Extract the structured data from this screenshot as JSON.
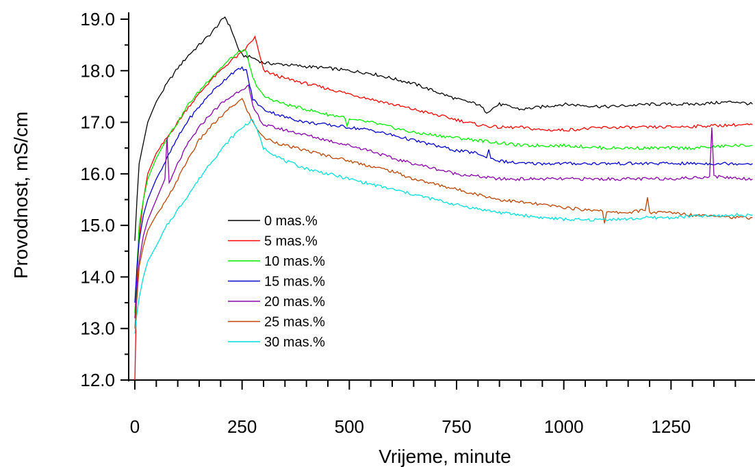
{
  "chart_data": {
    "type": "line",
    "xlabel": "Vrijeme, minute",
    "ylabel": "Provodnost, mS/cm",
    "xlim": [
      0,
      1440
    ],
    "ylim": [
      12.0,
      19.1
    ],
    "x_ticks": [
      0,
      250,
      500,
      750,
      1000,
      1250
    ],
    "x_tick_labels": [
      "0",
      "250",
      "500",
      "750",
      "1000",
      "1250"
    ],
    "y_ticks": [
      12.0,
      13.0,
      14.0,
      15.0,
      16.0,
      17.0,
      18.0,
      19.0
    ],
    "y_tick_labels": [
      "12.0",
      "13.0",
      "14.0",
      "15.0",
      "16.0",
      "17.0",
      "18.0",
      "19.0"
    ],
    "grid": false,
    "legend_position": "center-left",
    "series": [
      {
        "name": "0 mas.%",
        "color": "#000000",
        "x": [
          0,
          5,
          10,
          20,
          30,
          50,
          75,
          100,
          125,
          150,
          175,
          200,
          210,
          225,
          240,
          250,
          275,
          300,
          350,
          400,
          450,
          500,
          550,
          600,
          650,
          700,
          750,
          800,
          820,
          850,
          900,
          950,
          1000,
          1100,
          1200,
          1300,
          1400,
          1440
        ],
        "values": [
          14.7,
          15.5,
          16.2,
          16.6,
          17.0,
          17.4,
          17.75,
          18.05,
          18.3,
          18.5,
          18.7,
          18.95,
          19.05,
          18.8,
          18.45,
          18.3,
          18.25,
          18.15,
          18.12,
          18.08,
          18.05,
          18.0,
          17.95,
          17.85,
          17.75,
          17.6,
          17.45,
          17.35,
          17.2,
          17.35,
          17.25,
          17.3,
          17.35,
          17.3,
          17.35,
          17.35,
          17.4,
          17.35
        ]
      },
      {
        "name": "5 mas.%",
        "color": "#ff0000",
        "x": [
          0,
          5,
          10,
          20,
          30,
          50,
          75,
          100,
          125,
          150,
          175,
          200,
          225,
          250,
          275,
          280,
          300,
          350,
          400,
          450,
          500,
          550,
          600,
          650,
          700,
          750,
          800,
          850,
          900,
          950,
          1000,
          1100,
          1200,
          1300,
          1400,
          1440
        ],
        "values": [
          12.0,
          14.0,
          14.8,
          15.5,
          16.0,
          16.4,
          16.7,
          17.0,
          17.3,
          17.55,
          17.8,
          18.0,
          18.2,
          18.35,
          18.6,
          18.65,
          18.0,
          17.85,
          17.75,
          17.65,
          17.55,
          17.45,
          17.35,
          17.25,
          17.15,
          17.05,
          16.95,
          16.9,
          16.9,
          16.85,
          16.85,
          16.9,
          16.9,
          16.92,
          16.95,
          16.95
        ]
      },
      {
        "name": "10 mas.%",
        "color": "#00ee00",
        "x": [
          0,
          5,
          10,
          20,
          30,
          50,
          75,
          100,
          125,
          150,
          175,
          200,
          225,
          250,
          260,
          275,
          300,
          350,
          400,
          450,
          490,
          495,
          500,
          550,
          600,
          650,
          700,
          750,
          800,
          850,
          900,
          950,
          1000,
          1100,
          1200,
          1300,
          1400,
          1440
        ],
        "values": [
          13.3,
          14.2,
          15.0,
          15.5,
          15.9,
          16.3,
          16.7,
          17.0,
          17.35,
          17.6,
          17.85,
          18.05,
          18.25,
          18.4,
          18.35,
          17.85,
          17.5,
          17.35,
          17.25,
          17.15,
          17.1,
          16.9,
          17.05,
          17.0,
          16.9,
          16.8,
          16.75,
          16.7,
          16.65,
          16.6,
          16.55,
          16.55,
          16.55,
          16.5,
          16.5,
          16.5,
          16.55,
          16.55
        ]
      },
      {
        "name": "15 mas.%",
        "color": "#0000cc",
        "x": [
          0,
          5,
          10,
          20,
          30,
          50,
          75,
          100,
          125,
          150,
          175,
          200,
          225,
          250,
          260,
          275,
          300,
          350,
          400,
          450,
          500,
          550,
          600,
          650,
          700,
          750,
          800,
          820,
          825,
          830,
          850,
          900,
          950,
          1000,
          1100,
          1200,
          1300,
          1400,
          1440
        ],
        "values": [
          13.5,
          14.2,
          14.7,
          15.2,
          15.5,
          15.9,
          16.3,
          16.7,
          17.05,
          17.3,
          17.55,
          17.75,
          17.95,
          18.05,
          18.0,
          17.45,
          17.25,
          17.1,
          17.0,
          16.95,
          16.9,
          16.85,
          16.75,
          16.65,
          16.55,
          16.45,
          16.4,
          16.3,
          16.5,
          16.3,
          16.25,
          16.2,
          16.2,
          16.2,
          16.2,
          16.2,
          16.2,
          16.2,
          16.2
        ]
      },
      {
        "name": "20 mas.%",
        "color": "#8800aa",
        "x": [
          0,
          5,
          10,
          20,
          30,
          50,
          70,
          75,
          80,
          100,
          125,
          150,
          175,
          200,
          225,
          250,
          265,
          275,
          300,
          350,
          400,
          450,
          500,
          550,
          600,
          650,
          700,
          750,
          800,
          850,
          900,
          950,
          1000,
          1100,
          1200,
          1300,
          1340,
          1345,
          1350,
          1400,
          1440
        ],
        "values": [
          13.2,
          13.8,
          14.3,
          14.8,
          15.1,
          15.5,
          15.9,
          16.7,
          15.8,
          16.2,
          16.6,
          16.9,
          17.15,
          17.35,
          17.5,
          17.65,
          17.7,
          17.3,
          16.95,
          16.85,
          16.75,
          16.65,
          16.55,
          16.45,
          16.3,
          16.2,
          16.1,
          16.0,
          15.95,
          15.9,
          15.9,
          15.9,
          15.9,
          15.9,
          15.9,
          15.92,
          15.95,
          16.9,
          15.95,
          15.92,
          15.9
        ]
      },
      {
        "name": "25 mas.%",
        "color": "#bb4400",
        "x": [
          0,
          5,
          10,
          20,
          30,
          50,
          75,
          100,
          125,
          150,
          175,
          200,
          225,
          250,
          275,
          300,
          350,
          400,
          450,
          500,
          550,
          600,
          650,
          700,
          750,
          800,
          850,
          900,
          950,
          1000,
          1050,
          1090,
          1095,
          1100,
          1150,
          1190,
          1195,
          1200,
          1250,
          1300,
          1350,
          1400,
          1440
        ],
        "values": [
          13.0,
          13.6,
          14.2,
          14.6,
          14.9,
          15.2,
          15.5,
          15.9,
          16.3,
          16.65,
          16.9,
          17.1,
          17.3,
          17.45,
          17.0,
          16.7,
          16.55,
          16.45,
          16.35,
          16.25,
          16.15,
          16.05,
          15.9,
          15.8,
          15.7,
          15.6,
          15.5,
          15.45,
          15.4,
          15.35,
          15.3,
          15.3,
          15.05,
          15.25,
          15.25,
          15.3,
          15.55,
          15.25,
          15.25,
          15.2,
          15.2,
          15.15,
          15.15
        ]
      },
      {
        "name": "30 mas.%",
        "color": "#00dddd",
        "x": [
          0,
          5,
          10,
          20,
          30,
          50,
          75,
          100,
          125,
          150,
          175,
          200,
          225,
          250,
          275,
          280,
          300,
          350,
          400,
          450,
          500,
          550,
          600,
          650,
          700,
          750,
          800,
          850,
          900,
          950,
          1000,
          1050,
          1100,
          1150,
          1200,
          1250,
          1300,
          1350,
          1400,
          1440
        ],
        "values": [
          12.9,
          13.3,
          13.6,
          14.0,
          14.3,
          14.6,
          15.0,
          15.3,
          15.6,
          15.9,
          16.2,
          16.45,
          16.7,
          16.9,
          17.05,
          16.95,
          16.5,
          16.25,
          16.1,
          16.0,
          15.9,
          15.8,
          15.7,
          15.6,
          15.5,
          15.4,
          15.32,
          15.25,
          15.2,
          15.15,
          15.12,
          15.1,
          15.12,
          15.12,
          15.15,
          15.15,
          15.18,
          15.18,
          15.2,
          15.2
        ]
      }
    ]
  }
}
